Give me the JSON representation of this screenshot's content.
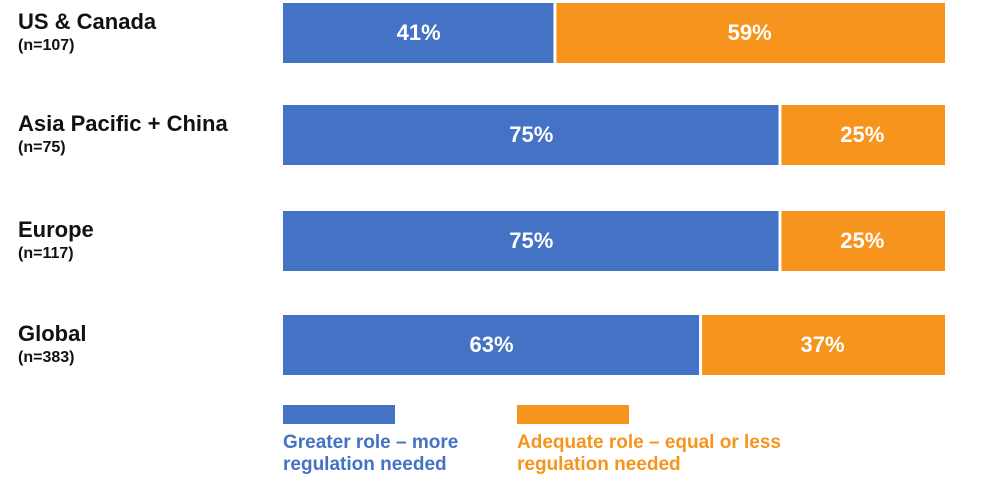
{
  "chart_data": {
    "type": "stacked_bar_horizontal",
    "categories": [
      "US & Canada",
      "Asia Pacific + China",
      "Europe",
      "Global"
    ],
    "sample_sizes": [
      "(n=107)",
      "(n=75)",
      "(n=117)",
      "(n=383)"
    ],
    "xlim": [
      0,
      100
    ],
    "series": [
      {
        "name": "Greater role – more regulation needed",
        "color": "#4472c4",
        "values": [
          41,
          75,
          75,
          63
        ],
        "value_labels": [
          "41%",
          "75%",
          "75%",
          "63%"
        ]
      },
      {
        "name": "Adequate role – equal or less regulation needed",
        "color": "#f7941d",
        "values": [
          59,
          25,
          25,
          37
        ],
        "value_labels": [
          "59%",
          "25%",
          "25%",
          "37%"
        ]
      }
    ]
  }
}
